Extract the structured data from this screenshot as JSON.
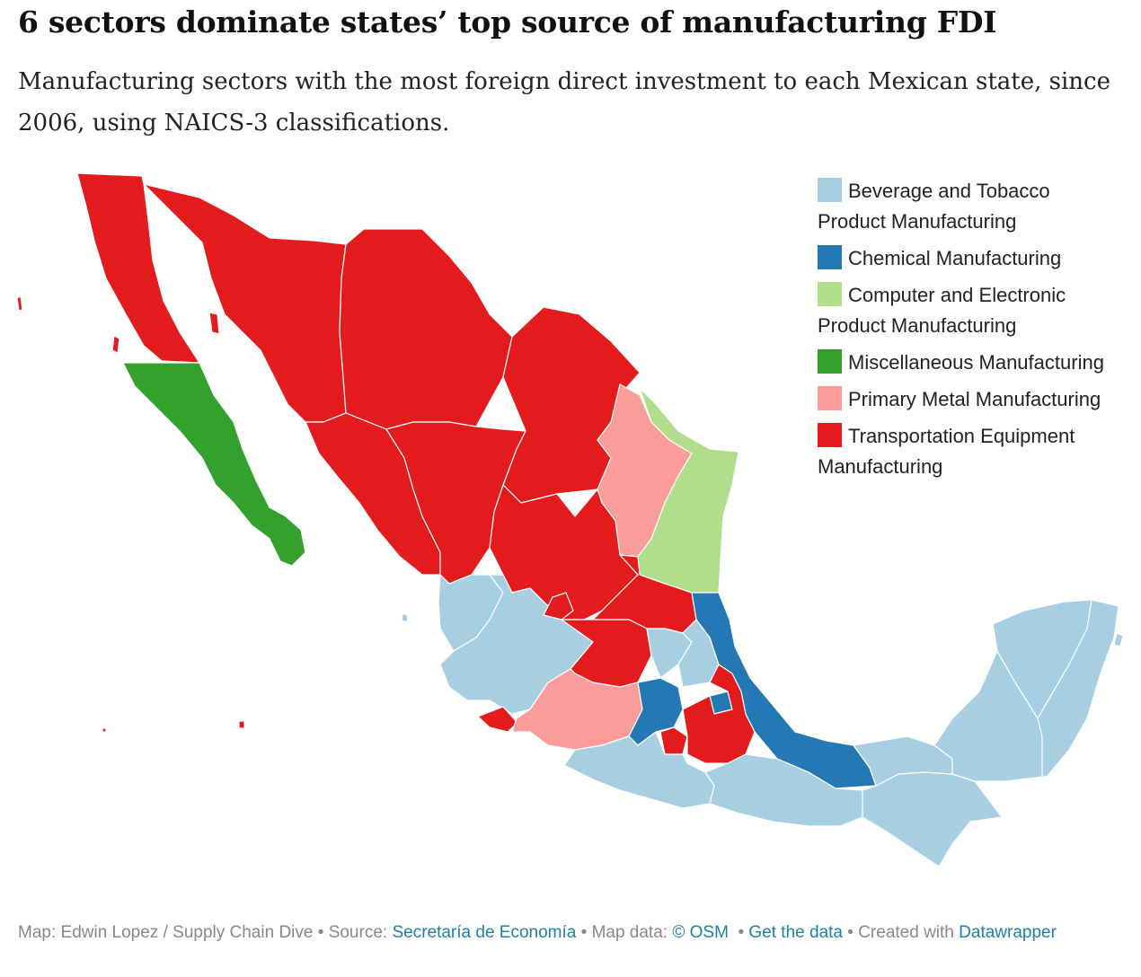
{
  "header": {
    "title": "6 sectors dominate states’ top source of manufacturing FDI",
    "subtitle": "Manufacturing sectors with the most foreign direct investment to each Mexican state, since 2006, using NAICS-3 classifications."
  },
  "legend": [
    {
      "label": "Beverage and Tobacco Product Manufacturing",
      "color": "#a8cee2"
    },
    {
      "label": "Chemical Manufacturing",
      "color": "#2478b4"
    },
    {
      "label": "Computer and Electronic Product Manufacturing",
      "color": "#b1de8b"
    },
    {
      "label": "Miscellaneous Manufacturing",
      "color": "#34a02d"
    },
    {
      "label": "Primary Metal Manufacturing",
      "color": "#f99c9a"
    },
    {
      "label": "Transportation Equipment Manufacturing",
      "color": "#e31b1c"
    }
  ],
  "regions": [
    {
      "name": "Baja California",
      "sector": "Transportation Equipment Manufacturing"
    },
    {
      "name": "Sonora",
      "sector": "Transportation Equipment Manufacturing"
    },
    {
      "name": "Chihuahua",
      "sector": "Transportation Equipment Manufacturing"
    },
    {
      "name": "Coahuila",
      "sector": "Transportation Equipment Manufacturing"
    },
    {
      "name": "Sinaloa",
      "sector": "Transportation Equipment Manufacturing"
    },
    {
      "name": "Durango",
      "sector": "Transportation Equipment Manufacturing"
    },
    {
      "name": "Zacatecas",
      "sector": "Transportation Equipment Manufacturing"
    },
    {
      "name": "Aguascalientes",
      "sector": "Transportation Equipment Manufacturing"
    },
    {
      "name": "Guanajuato",
      "sector": "Transportation Equipment Manufacturing"
    },
    {
      "name": "San Luis Potosí",
      "sector": "Transportation Equipment Manufacturing"
    },
    {
      "name": "Puebla",
      "sector": "Transportation Equipment Manufacturing"
    },
    {
      "name": "Morelos",
      "sector": "Transportation Equipment Manufacturing"
    },
    {
      "name": "Colima",
      "sector": "Transportation Equipment Manufacturing"
    },
    {
      "name": "Baja California Sur",
      "sector": "Miscellaneous Manufacturing"
    },
    {
      "name": "Nuevo León",
      "sector": "Primary Metal Manufacturing"
    },
    {
      "name": "Michoacán",
      "sector": "Primary Metal Manufacturing"
    },
    {
      "name": "Tamaulipas",
      "sector": "Computer and Electronic Product Manufacturing"
    },
    {
      "name": "Veracruz",
      "sector": "Chemical Manufacturing"
    },
    {
      "name": "Estado de México",
      "sector": "Chemical Manufacturing"
    },
    {
      "name": "Tlaxcala",
      "sector": "Chemical Manufacturing"
    },
    {
      "name": "Nayarit",
      "sector": "Beverage and Tobacco Product Manufacturing"
    },
    {
      "name": "Jalisco",
      "sector": "Beverage and Tobacco Product Manufacturing"
    },
    {
      "name": "Querétaro",
      "sector": "Beverage and Tobacco Product Manufacturing"
    },
    {
      "name": "Hidalgo",
      "sector": "Beverage and Tobacco Product Manufacturing"
    },
    {
      "name": "Guerrero",
      "sector": "Beverage and Tobacco Product Manufacturing"
    },
    {
      "name": "Oaxaca",
      "sector": "Beverage and Tobacco Product Manufacturing"
    },
    {
      "name": "Tabasco",
      "sector": "Beverage and Tobacco Product Manufacturing"
    },
    {
      "name": "Chiapas",
      "sector": "Beverage and Tobacco Product Manufacturing"
    },
    {
      "name": "Campeche",
      "sector": "Beverage and Tobacco Product Manufacturing"
    },
    {
      "name": "Yucatán",
      "sector": "Beverage and Tobacco Product Manufacturing"
    },
    {
      "name": "Quintana Roo",
      "sector": "Beverage and Tobacco Product Manufacturing"
    }
  ],
  "footer": {
    "credit": "Map: Edwin Lopez / Supply Chain Dive",
    "source_label": "Source:",
    "source_link": "Secretaría de Economía",
    "mapdata_label": "Map data:",
    "mapdata_link": "© OSM",
    "data_link": "Get the data",
    "created_label": "Created with",
    "created_link": "Datawrapper"
  }
}
